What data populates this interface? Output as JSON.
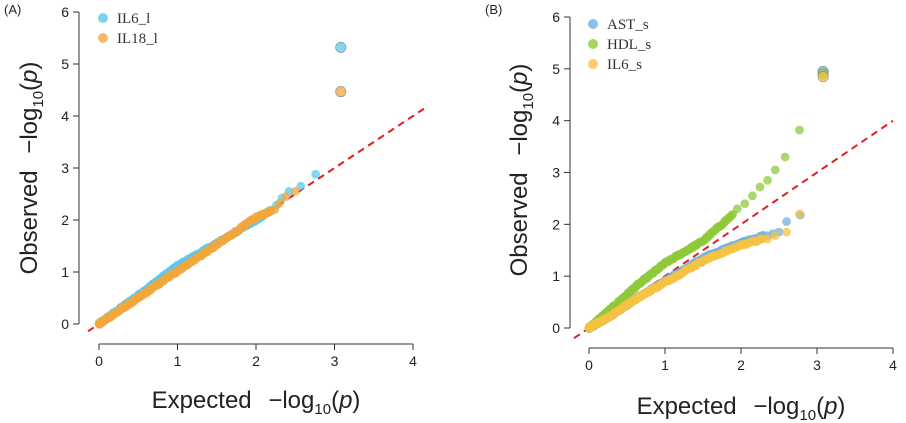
{
  "colors": {
    "IL6_l": "#5bc8ec",
    "IL18_l": "#f2a73c",
    "AST_s": "#6fb0e4",
    "HDL_s": "#8fc93a",
    "IL6_s": "#f5c243",
    "diagonal": "#e02020"
  },
  "chart_data": [
    {
      "type": "scatter",
      "subtype": "qq-plot",
      "panel_label": "(A)",
      "xlabel_prefix": "Expected",
      "ylabel_prefix": "Observed",
      "log_label": "−log",
      "log_sub": "10",
      "log_arg_open": "(",
      "log_arg_var": "p",
      "log_arg_close": ")",
      "xlim": [
        0,
        4
      ],
      "ylim": [
        0,
        6
      ],
      "xticks": [
        "0",
        "1",
        "2",
        "3",
        "4"
      ],
      "yticks": [
        "0",
        "1",
        "2",
        "3",
        "4",
        "5",
        "6"
      ],
      "reference_line": "y = x",
      "legend_position": "top-left",
      "series": [
        {
          "name": "IL6_l",
          "color_key": "IL6_l",
          "trend": [
            [
              0,
              0
            ],
            [
              0.5,
              0.55
            ],
            [
              1.0,
              1.12
            ],
            [
              1.5,
              1.55
            ],
            [
              2.0,
              2.0
            ],
            [
              2.2,
              2.2
            ]
          ],
          "tail": [
            [
              2.26,
              2.28
            ],
            [
              2.33,
              2.42
            ],
            [
              2.42,
              2.55
            ],
            [
              2.57,
              2.65
            ],
            [
              2.76,
              2.88
            ],
            [
              3.08,
              5.32
            ]
          ]
        },
        {
          "name": "IL18_l",
          "color_key": "IL18_l",
          "trend": [
            [
              0,
              0
            ],
            [
              0.5,
              0.5
            ],
            [
              1.0,
              1.02
            ],
            [
              1.5,
              1.52
            ],
            [
              2.0,
              2.05
            ],
            [
              2.2,
              2.18
            ]
          ],
          "tail": [
            [
              2.24,
              2.2
            ],
            [
              2.3,
              2.32
            ],
            [
              2.38,
              2.45
            ],
            [
              2.5,
              2.55
            ],
            [
              3.08,
              4.47
            ]
          ]
        }
      ]
    },
    {
      "type": "scatter",
      "subtype": "qq-plot",
      "panel_label": "(B)",
      "xlabel_prefix": "Expected",
      "ylabel_prefix": "Observed",
      "log_label": "−log",
      "log_sub": "10",
      "log_arg_open": "(",
      "log_arg_var": "p",
      "log_arg_close": ")",
      "xlim": [
        0,
        4
      ],
      "ylim": [
        0,
        6
      ],
      "xticks": [
        "0",
        "1",
        "2",
        "3",
        "4"
      ],
      "yticks": [
        "0",
        "1",
        "2",
        "3",
        "4",
        "5",
        "6"
      ],
      "reference_line": "y = x",
      "legend_position": "top-left",
      "series": [
        {
          "name": "AST_s",
          "color_key": "AST_s",
          "trend": [
            [
              0,
              0
            ],
            [
              0.3,
              0.25
            ],
            [
              0.6,
              0.55
            ],
            [
              1.0,
              0.9
            ],
            [
              1.5,
              1.35
            ],
            [
              2.0,
              1.65
            ],
            [
              2.3,
              1.78
            ]
          ],
          "tail": [
            [
              2.35,
              1.78
            ],
            [
              2.42,
              1.82
            ],
            [
              2.5,
              1.85
            ],
            [
              2.6,
              2.05
            ],
            [
              2.78,
              2.18
            ],
            [
              3.08,
              4.95
            ]
          ]
        },
        {
          "name": "HDL_s",
          "color_key": "HDL_s",
          "trend": [
            [
              0,
              0
            ],
            [
              0.3,
              0.38
            ],
            [
              0.6,
              0.78
            ],
            [
              1.0,
              1.25
            ],
            [
              1.5,
              1.68
            ],
            [
              1.9,
              2.2
            ]
          ],
          "tail": [
            [
              1.95,
              2.3
            ],
            [
              2.05,
              2.4
            ],
            [
              2.15,
              2.55
            ],
            [
              2.25,
              2.72
            ],
            [
              2.35,
              2.85
            ],
            [
              2.45,
              3.05
            ],
            [
              2.58,
              3.3
            ],
            [
              2.77,
              3.82
            ],
            [
              3.08,
              4.9
            ]
          ]
        },
        {
          "name": "IL6_s",
          "color_key": "IL6_s",
          "trend": [
            [
              0,
              0
            ],
            [
              0.3,
              0.25
            ],
            [
              0.6,
              0.55
            ],
            [
              1.0,
              0.88
            ],
            [
              1.5,
              1.3
            ],
            [
              2.0,
              1.6
            ],
            [
              2.3,
              1.72
            ]
          ],
          "tail": [
            [
              2.35,
              1.72
            ],
            [
              2.45,
              1.78
            ],
            [
              2.6,
              1.85
            ],
            [
              2.77,
              2.2
            ],
            [
              3.08,
              4.85
            ]
          ]
        }
      ]
    }
  ]
}
